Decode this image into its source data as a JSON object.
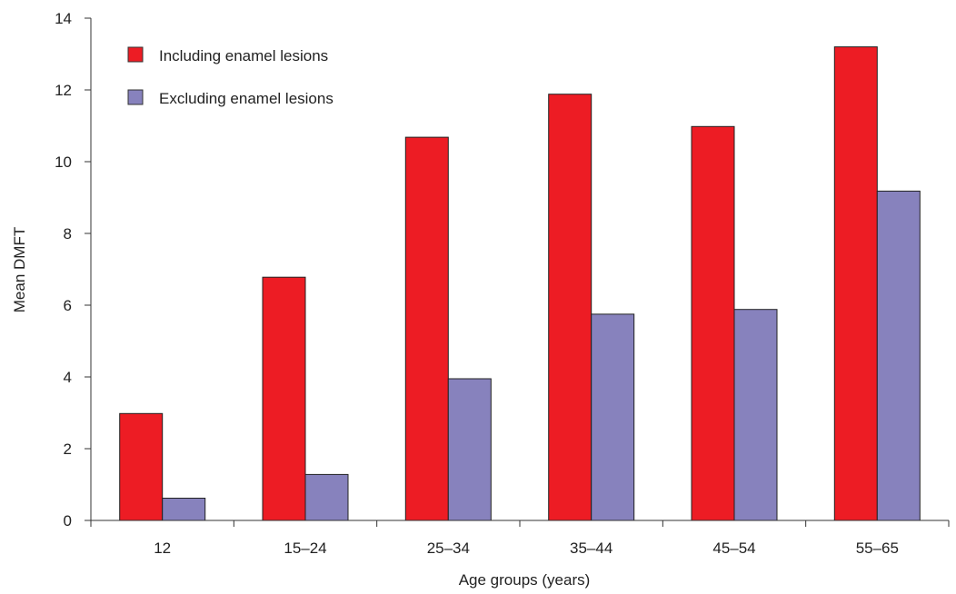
{
  "chart_data": {
    "type": "bar",
    "xlabel": "Age groups (years)",
    "ylabel": "Mean DMFT",
    "ylim": [
      0,
      14
    ],
    "yticks": [
      0,
      2,
      4,
      6,
      8,
      10,
      12,
      14
    ],
    "grid": false,
    "legend_position": "top-left",
    "categories": [
      "12",
      "15–24",
      "25–34",
      "35–44",
      "45–54",
      "55–65"
    ],
    "series": [
      {
        "name": "Including enamel lesions",
        "color": "#ed1c24",
        "values": [
          2.98,
          6.78,
          10.68,
          11.88,
          10.98,
          13.2
        ]
      },
      {
        "name": "Excluding enamel lesions",
        "color": "#8782bd",
        "values": [
          0.62,
          1.28,
          3.95,
          5.75,
          5.88,
          9.18
        ]
      }
    ]
  }
}
